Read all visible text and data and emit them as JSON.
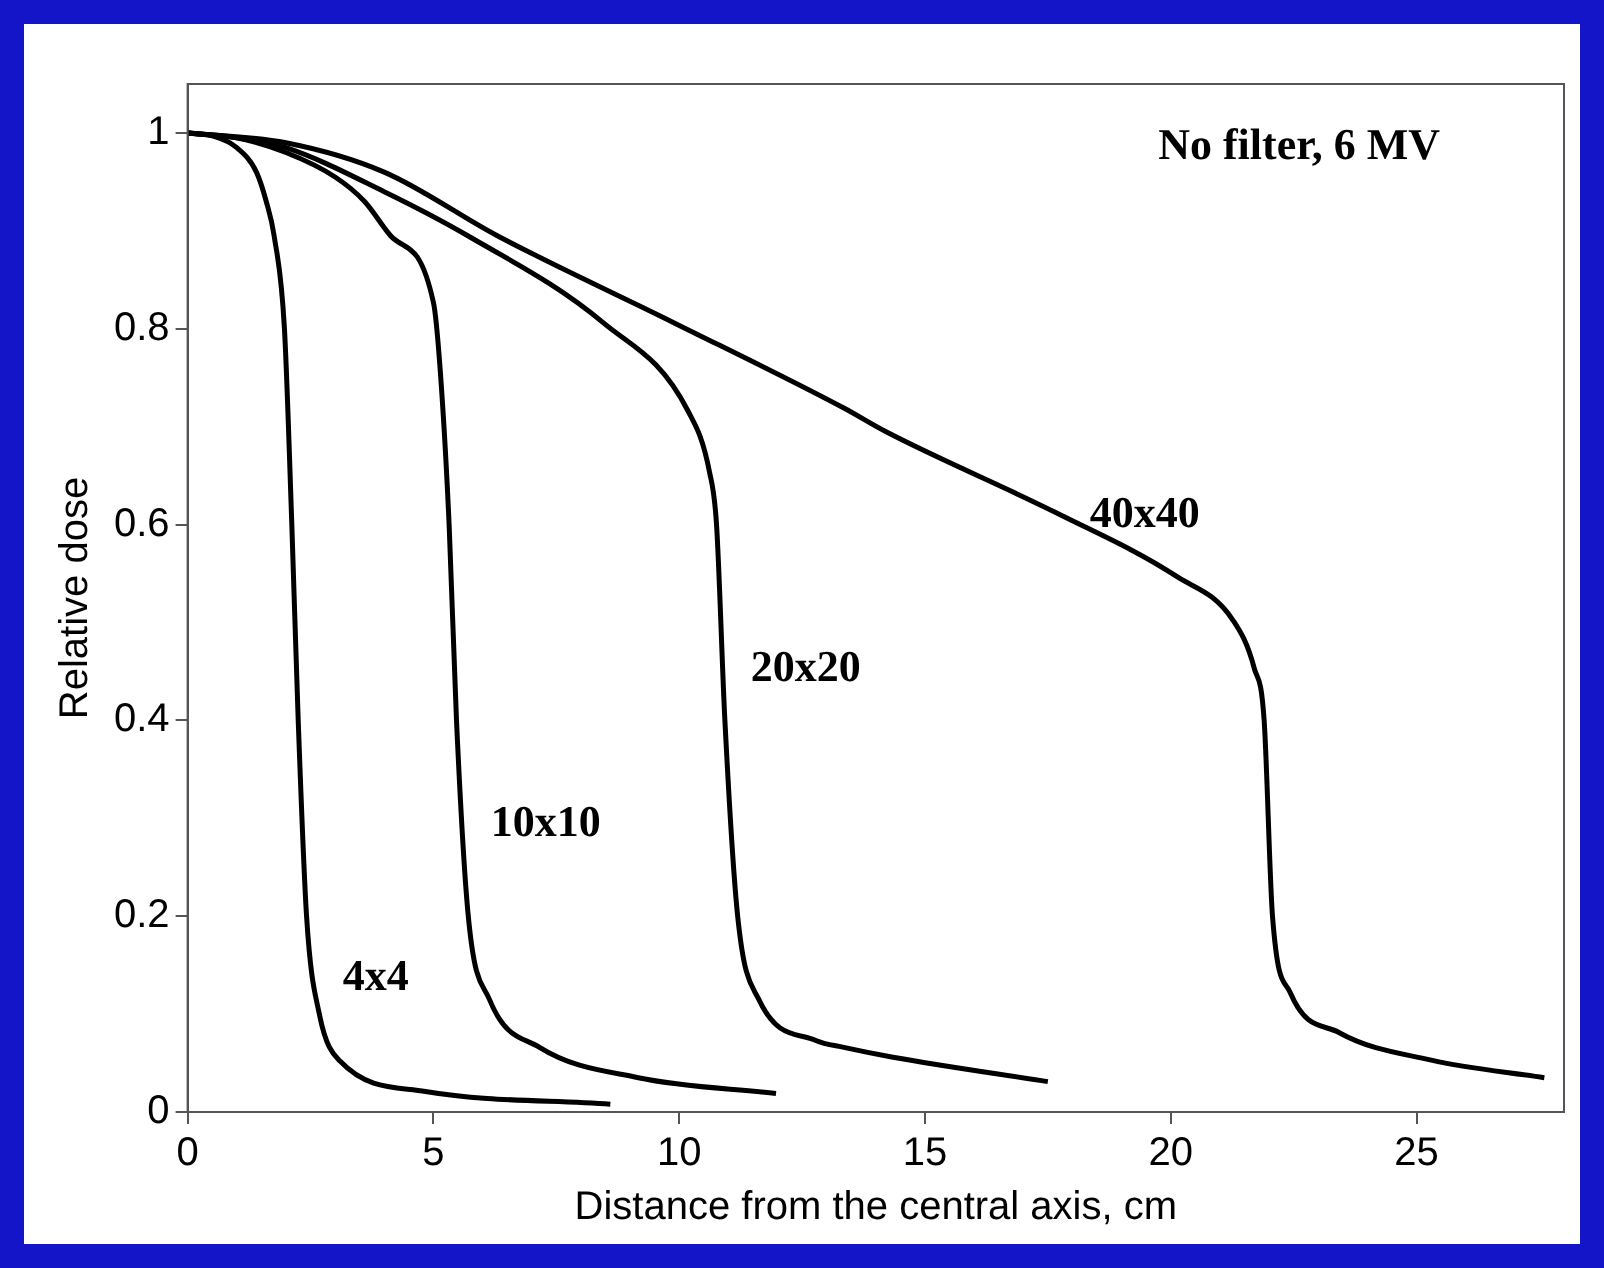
{
  "chart_data": {
    "type": "line",
    "xlabel": "Distance from the central axis, cm",
    "ylabel": "Relative dose",
    "xlim": [
      0,
      28
    ],
    "xticks": [
      0,
      5,
      10,
      15,
      20,
      25
    ],
    "ylim": [
      0,
      1.05
    ],
    "yticks": [
      0,
      0.2,
      0.4,
      0.6,
      0.8,
      1
    ],
    "grid": false,
    "legend": false,
    "marker": "none",
    "line_style": "solid",
    "series": [
      {
        "name": "4x4",
        "color": "#000000",
        "x": [
          0,
          0.5,
          1,
          1.4,
          1.6,
          1.76,
          1.97,
          2.12,
          2.25,
          2.42,
          2.68,
          3.1,
          4.84,
          8.6
        ],
        "values": [
          1,
          0.997,
          0.985,
          0.96,
          0.93,
          0.895,
          0.8,
          0.6,
          0.4,
          0.2,
          0.1,
          0.052,
          0.021,
          0.008
        ]
      },
      {
        "name": "10x10",
        "color": "#000000",
        "x": [
          0,
          1,
          2,
          3,
          3.6,
          4.13,
          5,
          5.14,
          5.32,
          5.47,
          5.71,
          6.14,
          7.16,
          9.17,
          11.97
        ],
        "values": [
          1,
          0.995,
          0.98,
          0.955,
          0.93,
          0.895,
          0.827,
          0.757,
          0.6,
          0.4,
          0.2,
          0.115,
          0.066,
          0.035,
          0.019
        ]
      },
      {
        "name": "20x20",
        "color": "#000000",
        "x": [
          0,
          1,
          2,
          4,
          5.7,
          8.46,
          10.18,
          10.62,
          10.76,
          10.93,
          11.19,
          11.62,
          12.78,
          13.35,
          14.35,
          17.5
        ],
        "values": [
          1,
          0.995,
          0.985,
          0.94,
          0.895,
          0.806,
          0.716,
          0.653,
          0.6,
          0.4,
          0.2,
          0.115,
          0.073,
          0.066,
          0.056,
          0.031
        ]
      },
      {
        "name": "40x40",
        "color": "#000000",
        "x": [
          0,
          2,
          4,
          6.3,
          9.9,
          13.35,
          14.2,
          17.67,
          20.12,
          21.27,
          21.7,
          21.9,
          22.07,
          22.43,
          23.43,
          25.3,
          27.6
        ],
        "values": [
          1,
          0.99,
          0.96,
          0.895,
          0.806,
          0.719,
          0.695,
          0.612,
          0.547,
          0.502,
          0.453,
          0.4,
          0.2,
          0.122,
          0.081,
          0.053,
          0.035
        ]
      }
    ],
    "annotations": [
      "No filter, 6 MV"
    ]
  }
}
